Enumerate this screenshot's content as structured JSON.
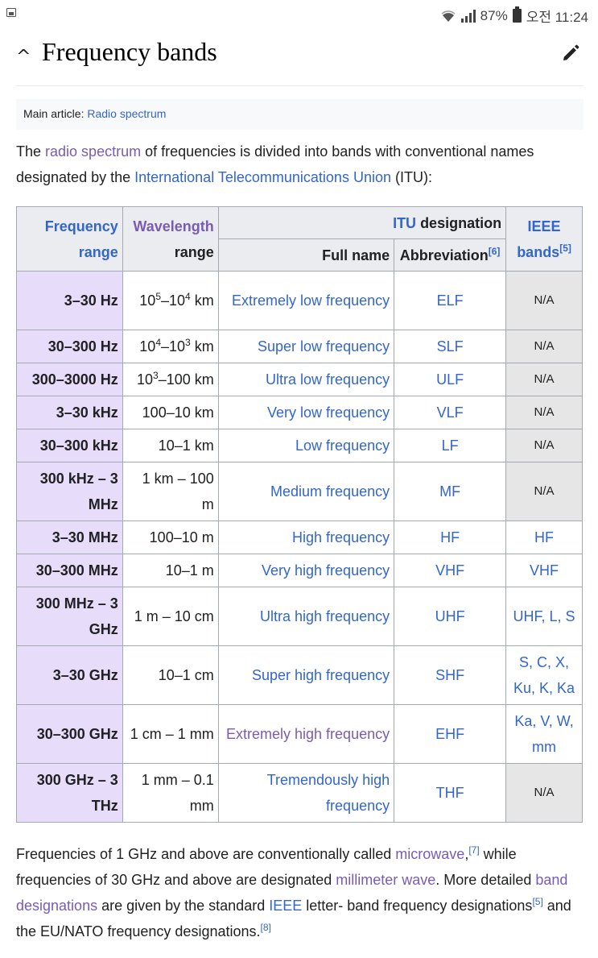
{
  "status": {
    "battery": "87%",
    "time": "오전 11:24"
  },
  "section": {
    "title": "Frequency bands"
  },
  "hatnote": {
    "prefix": "Main article: ",
    "link": "Radio spectrum"
  },
  "intro": {
    "t1": "The ",
    "l1": "radio spectrum",
    "t2": " of frequencies is divided into bands with conventional names designated by the ",
    "l2": "International Telecommunications Union",
    "t3": " (ITU):"
  },
  "table": {
    "h_freq_1": "Frequency",
    "h_freq_2": "range",
    "h_wave_1": "Wavelength",
    "h_wave_2": "range",
    "h_itu_link": "ITU",
    "h_itu_text": " designation",
    "h_ieee_1": "IEEE",
    "h_ieee_2": "bands",
    "h_ieee_ref": "[5]",
    "h_full": "Full name",
    "h_abbr": "Abbreviation",
    "h_abbr_ref": "[6]",
    "rows": [
      {
        "freq": "3–30 Hz",
        "wave": "10⁵–10⁴ km",
        "name": "Extremely low frequency",
        "abbr": "ELF",
        "ieee": "N/A"
      },
      {
        "freq": "30–300 Hz",
        "wave": "10⁴–10³ km",
        "name": "Super low frequency",
        "abbr": "SLF",
        "ieee": "N/A"
      },
      {
        "freq": "300–3000 Hz",
        "wave": "10³–100 km",
        "name": "Ultra low frequency",
        "abbr": "ULF",
        "ieee": "N/A"
      },
      {
        "freq": "3–30 kHz",
        "wave": "100–10 km",
        "name": "Very low frequency",
        "abbr": "VLF",
        "ieee": "N/A"
      },
      {
        "freq": "30–300 kHz",
        "wave": "10–1 km",
        "name": "Low frequency",
        "abbr": "LF",
        "ieee": "N/A"
      },
      {
        "freq": "300 kHz – 3 MHz",
        "wave": "1 km – 100 m",
        "name": "Medium frequency",
        "abbr": "MF",
        "ieee": "N/A"
      },
      {
        "freq": "3–30 MHz",
        "wave": "100–10 m",
        "name": "High frequency",
        "abbr": "HF",
        "ieee": "HF"
      },
      {
        "freq": "30–300 MHz",
        "wave": "10–1 m",
        "name": "Very high frequency",
        "abbr": "VHF",
        "ieee": "VHF"
      },
      {
        "freq": "300 MHz – 3 GHz",
        "wave": "1 m – 10 cm",
        "name": "Ultra high frequency",
        "abbr": "UHF",
        "ieee": "UHF, L, S"
      },
      {
        "freq": "3–30 GHz",
        "wave": "10–1 cm",
        "name": "Super high frequency",
        "abbr": "SHF",
        "ieee": "S, C, X, Ku, K, Ka"
      },
      {
        "freq": "30–300 GHz",
        "wave": "1 cm – 1 mm",
        "name": "Extremely high frequency",
        "abbr": "EHF",
        "ieee": "Ka, V, W, mm"
      },
      {
        "freq": "300 GHz – 3 THz",
        "wave": "1 mm – 0.1 mm",
        "name": "Tremendously high frequency",
        "abbr": "THF",
        "ieee": "N/A"
      }
    ]
  },
  "outro": {
    "t1": "Frequencies of 1 GHz and above are conventionally called ",
    "l1": "microwave",
    "r1": "[7]",
    "t2": " while frequencies of 30 GHz and above are designated ",
    "l2": "millimeter wave",
    "t3": ". More detailed ",
    "l3": "band designations",
    "t4": " are given by the standard ",
    "l4": "IEEE",
    "t5": " letter- band frequency designations",
    "r2": "[5]",
    "t6": " and the EU/NATO frequency designations.",
    "r3": "[8]"
  }
}
